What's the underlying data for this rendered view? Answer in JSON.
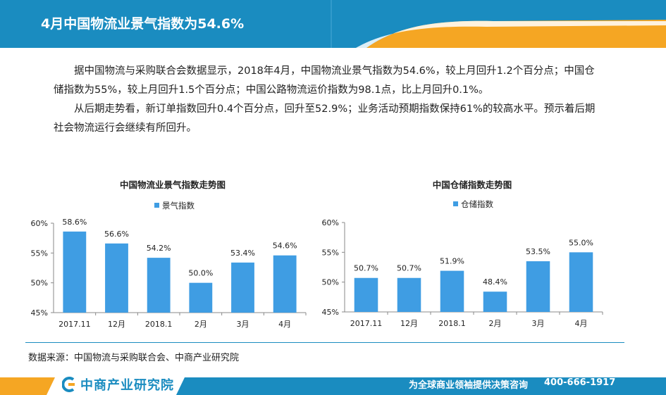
{
  "header": {
    "title": "4月中国物流业景气指数为54.6%"
  },
  "body": {
    "paragraph1": "据中国物流与采购联合会数据显示，2018年4月，中国物流业景气指数为54.6%，较上月回升1.2个百分点；中国仓储指数为55%，较上月回升1.5个百分点；中国公路物流运价指数为98.1点，比上月回升0.1%。",
    "paragraph2": "从后期走势看，新订单指数回升0.4个百分点，回升至52.9%；业务活动预期指数保持61%的较高水平。预示着后期社会物流运行会继续有所回升。"
  },
  "chart_data": [
    {
      "type": "bar",
      "title": "中国物流业景气指数走势图",
      "categories": [
        "2017.11",
        "12月",
        "2018.1",
        "2月",
        "3月",
        "4月"
      ],
      "series": [
        {
          "name": "景气指数",
          "values": [
            58.6,
            56.6,
            54.2,
            50.0,
            53.4,
            54.6
          ]
        }
      ],
      "data_labels": [
        "58.6%",
        "56.6%",
        "54.2%",
        "50.0%",
        "53.4%",
        "54.6%"
      ],
      "y_ticks": [
        "60%",
        "55%",
        "50%",
        "45%"
      ],
      "ylim": [
        45,
        60
      ],
      "legend_position": "top",
      "color": "#3f9de3",
      "grid": false
    },
    {
      "type": "bar",
      "title": "中国仓储指数走势图",
      "categories": [
        "2017.11",
        "12月",
        "2018.1",
        "2月",
        "3月",
        "4月"
      ],
      "series": [
        {
          "name": "仓储指数",
          "values": [
            50.7,
            50.7,
            51.9,
            48.4,
            53.5,
            55.0
          ]
        }
      ],
      "data_labels": [
        "50.7%",
        "50.7%",
        "51.9%",
        "48.4%",
        "53.5%",
        "55.0%"
      ],
      "y_ticks": [
        "60%",
        "55%",
        "50%",
        "45%"
      ],
      "ylim": [
        45,
        60
      ],
      "legend_position": "top",
      "color": "#3f9de3",
      "grid": false
    }
  ],
  "source": "数据来源：中国物流与采购联合会、中商产业研究院",
  "footer": {
    "logo_text": "中商产业研究院",
    "tagline": "为全球商业领袖提供决策咨询",
    "phone": "400-666-1917"
  },
  "colors": {
    "brand_blue": "#1a8cc0",
    "accent_orange": "#f5a623",
    "bar_blue": "#3f9de3"
  }
}
